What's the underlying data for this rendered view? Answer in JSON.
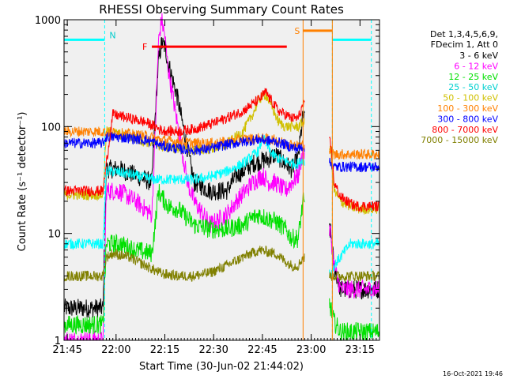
{
  "chart_data": {
    "type": "line",
    "title": "RHESSI Observing Summary Count Rates",
    "xlabel": "Start Time (30-Jun-02 21:44:02)",
    "ylabel": "Count Rate (s⁻¹ detector⁻¹)",
    "yscale": "log",
    "ylim": [
      1,
      1000
    ],
    "xlim_minutes_after_2144": [
      0,
      97
    ],
    "x_tick_labels": [
      "21:45",
      "22:00",
      "22:15",
      "22:30",
      "22:45",
      "23:00",
      "23:15"
    ],
    "x_tick_minutes": [
      1,
      16,
      31,
      46,
      61,
      76,
      91
    ],
    "y_tick_labels": [
      "1",
      "10",
      "100",
      "1000"
    ],
    "y_tick_values": [
      1,
      10,
      100,
      1000
    ],
    "legend_header": [
      "Det 1,3,4,5,6,9,",
      "FDecim 1, Att 0"
    ],
    "legend_position": "right",
    "footer_date": "16-Oct-2021 19:46",
    "annotations": {
      "night_label": "N",
      "flare_label": "F",
      "saa_label": "S",
      "flare_start_min": 27,
      "flare_end_min": 68.5,
      "flare_level": 560,
      "saa_start_min": 73.5,
      "saa_end_min": 82.5,
      "saa_level": 790,
      "night_level": 650,
      "night_intervals_min": [
        [
          0,
          12.5
        ],
        [
          82.5,
          94.5
        ]
      ],
      "data_gaps_min": [
        [
          74,
          81.5
        ]
      ]
    },
    "series": [
      {
        "name": "3 - 6 keV",
        "color": "#000000",
        "x": [
          0,
          12,
          13,
          17,
          22,
          27,
          28,
          29,
          30,
          31,
          32,
          35,
          38,
          40,
          45,
          50,
          53,
          55,
          58,
          61,
          63,
          65,
          68,
          70,
          72,
          73.5,
          82,
          83,
          85,
          88,
          90,
          95
        ],
        "values": [
          2,
          2,
          40,
          40,
          35,
          30,
          120,
          400,
          600,
          560,
          400,
          180,
          60,
          30,
          25,
          25,
          35,
          38,
          45,
          48,
          50,
          55,
          45,
          40,
          50,
          130,
          10,
          5,
          3,
          3,
          3,
          3
        ]
      },
      {
        "name": "6 - 12 keV",
        "color": "#ff00ff",
        "x": [
          0,
          12,
          13,
          17,
          22,
          27,
          28,
          29,
          30,
          31,
          32,
          35,
          38,
          40,
          45,
          50,
          53,
          58,
          61,
          63,
          65,
          68,
          70,
          72,
          73.5,
          82,
          83,
          85,
          88,
          90,
          95
        ],
        "values": [
          1,
          1,
          25,
          25,
          20,
          15,
          80,
          600,
          1000,
          700,
          350,
          100,
          30,
          20,
          12,
          15,
          20,
          30,
          35,
          30,
          30,
          25,
          30,
          35,
          60,
          10,
          5,
          3,
          3,
          3,
          3
        ]
      },
      {
        "name": "12 - 25 keV",
        "color": "#00e000",
        "x": [
          0,
          12,
          13,
          17,
          22,
          27,
          28,
          29,
          30,
          31,
          32,
          35,
          40,
          45,
          50,
          55,
          58,
          60,
          62,
          65,
          68,
          70,
          72,
          73.5,
          82,
          83,
          85,
          88,
          90,
          95
        ],
        "values": [
          1.4,
          1.4,
          8,
          8,
          7,
          6.5,
          12,
          25,
          22,
          20,
          18,
          17,
          12,
          11,
          11,
          12,
          14,
          15,
          14,
          13,
          11,
          9,
          9,
          20,
          2,
          1.5,
          1.2,
          1.2,
          1.2,
          1.2
        ]
      },
      {
        "name": "25 - 50 keV",
        "color": "#00ffff",
        "x": [
          0,
          12,
          13,
          15,
          20,
          25,
          28,
          30,
          35,
          40,
          45,
          50,
          55,
          60,
          61,
          62,
          64,
          66,
          68,
          70,
          72,
          73.5,
          82,
          83,
          85,
          88,
          90,
          95
        ],
        "values": [
          8,
          8,
          38,
          38,
          36,
          33,
          32,
          32,
          32,
          32,
          34,
          38,
          45,
          60,
          80,
          70,
          55,
          50,
          48,
          45,
          45,
          50,
          4,
          5,
          6,
          8,
          8,
          8
        ]
      },
      {
        "name": "50 - 100 keV",
        "color": "#d0c000",
        "x": [
          0,
          12,
          13,
          15,
          20,
          25,
          28,
          30,
          35,
          40,
          45,
          50,
          55,
          58,
          60,
          62,
          64,
          66,
          68,
          70,
          72,
          73.5,
          82,
          83,
          85,
          88,
          90,
          95
        ],
        "values": [
          23,
          23,
          90,
          88,
          80,
          72,
          70,
          65,
          62,
          60,
          62,
          68,
          90,
          130,
          180,
          200,
          150,
          110,
          100,
          100,
          100,
          110,
          60,
          25,
          20,
          18,
          17,
          17
        ]
      },
      {
        "name": "100 - 300 keV",
        "color": "#ff8000",
        "x": [
          0,
          12,
          13,
          15,
          20,
          25,
          28,
          30,
          35,
          40,
          45,
          50,
          55,
          60,
          65,
          68,
          70,
          72,
          73.5,
          82,
          83,
          85,
          88,
          90,
          95
        ],
        "values": [
          90,
          90,
          88,
          88,
          85,
          82,
          78,
          75,
          72,
          70,
          70,
          72,
          76,
          78,
          75,
          70,
          68,
          66,
          68,
          60,
          55,
          55,
          55,
          55,
          55
        ]
      },
      {
        "name": "300 - 800 keV",
        "color": "#0000ff",
        "x": [
          0,
          12,
          13,
          15,
          20,
          25,
          28,
          30,
          35,
          40,
          45,
          50,
          55,
          60,
          65,
          68,
          70,
          72,
          73.5,
          82,
          83,
          85,
          88,
          90,
          95
        ],
        "values": [
          70,
          70,
          80,
          80,
          78,
          75,
          70,
          66,
          62,
          60,
          62,
          68,
          72,
          76,
          72,
          68,
          64,
          62,
          66,
          45,
          42,
          42,
          42,
          42,
          42
        ]
      },
      {
        "name": "800 - 7000 keV",
        "color": "#ff0000",
        "x": [
          0,
          12,
          13,
          15,
          20,
          25,
          28,
          30,
          35,
          40,
          45,
          50,
          55,
          60,
          62,
          64,
          66,
          68,
          70,
          72,
          73.5,
          82,
          83,
          85,
          88,
          90,
          95
        ],
        "values": [
          25,
          25,
          45,
          130,
          120,
          110,
          100,
          92,
          90,
          95,
          105,
          120,
          140,
          180,
          210,
          170,
          140,
          130,
          120,
          120,
          160,
          70,
          30,
          22,
          19,
          18,
          18
        ]
      },
      {
        "name": "7000 - 15000 keV",
        "color": "#808000",
        "x": [
          0,
          12,
          13,
          15,
          20,
          25,
          28,
          30,
          35,
          40,
          45,
          50,
          55,
          60,
          65,
          68,
          70,
          72,
          73.5,
          82,
          83,
          85,
          88,
          90,
          95
        ],
        "values": [
          4,
          4,
          6,
          6.5,
          6,
          5,
          4.5,
          4.2,
          4,
          4,
          4.3,
          5,
          6,
          7,
          6.5,
          5.5,
          5,
          5,
          6,
          4,
          4,
          4,
          4,
          4,
          4
        ]
      }
    ]
  }
}
